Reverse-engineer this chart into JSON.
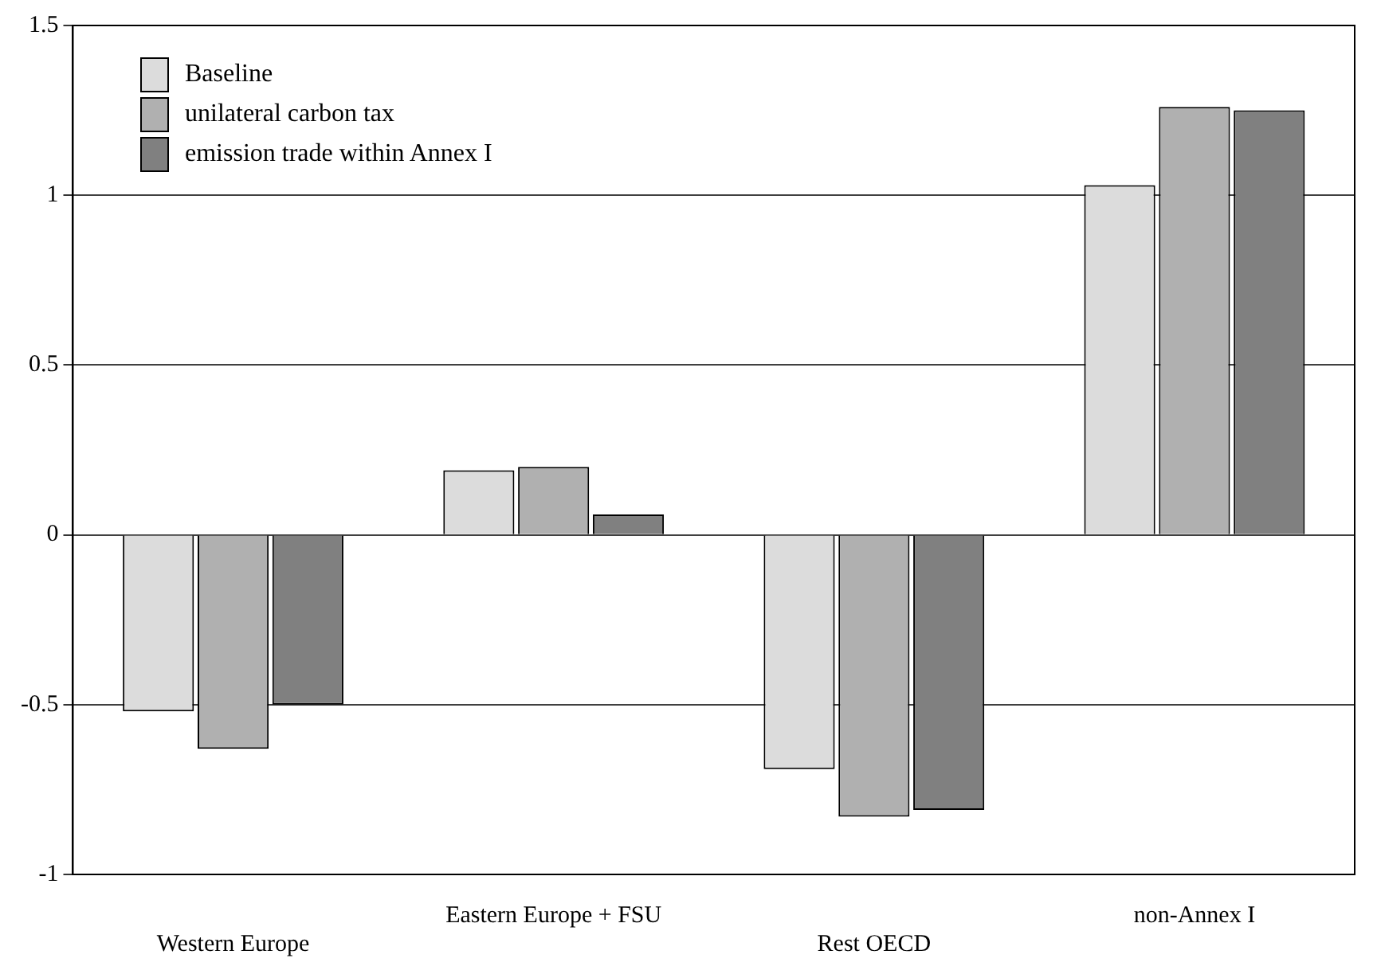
{
  "chart_data": {
    "type": "bar",
    "categories": [
      "Western Europe",
      "Eastern Europe + FSU",
      "Rest OECD",
      "non-Annex I"
    ],
    "series": [
      {
        "name": "Baseline",
        "color": "#dcdcdc",
        "values": [
          -0.52,
          0.19,
          -0.69,
          1.03
        ]
      },
      {
        "name": "unilateral carbon tax",
        "color": "#b0b0b0",
        "values": [
          -0.63,
          0.2,
          -0.83,
          1.26
        ]
      },
      {
        "name": "emission trade within Annex I",
        "color": "#808080",
        "values": [
          -0.5,
          0.06,
          -0.81,
          1.25
        ]
      }
    ],
    "ylim": [
      -1,
      1.5
    ],
    "yticks": [
      -1,
      -0.5,
      0,
      0.5,
      1,
      1.5
    ],
    "grid": "y",
    "legend": "top left"
  }
}
